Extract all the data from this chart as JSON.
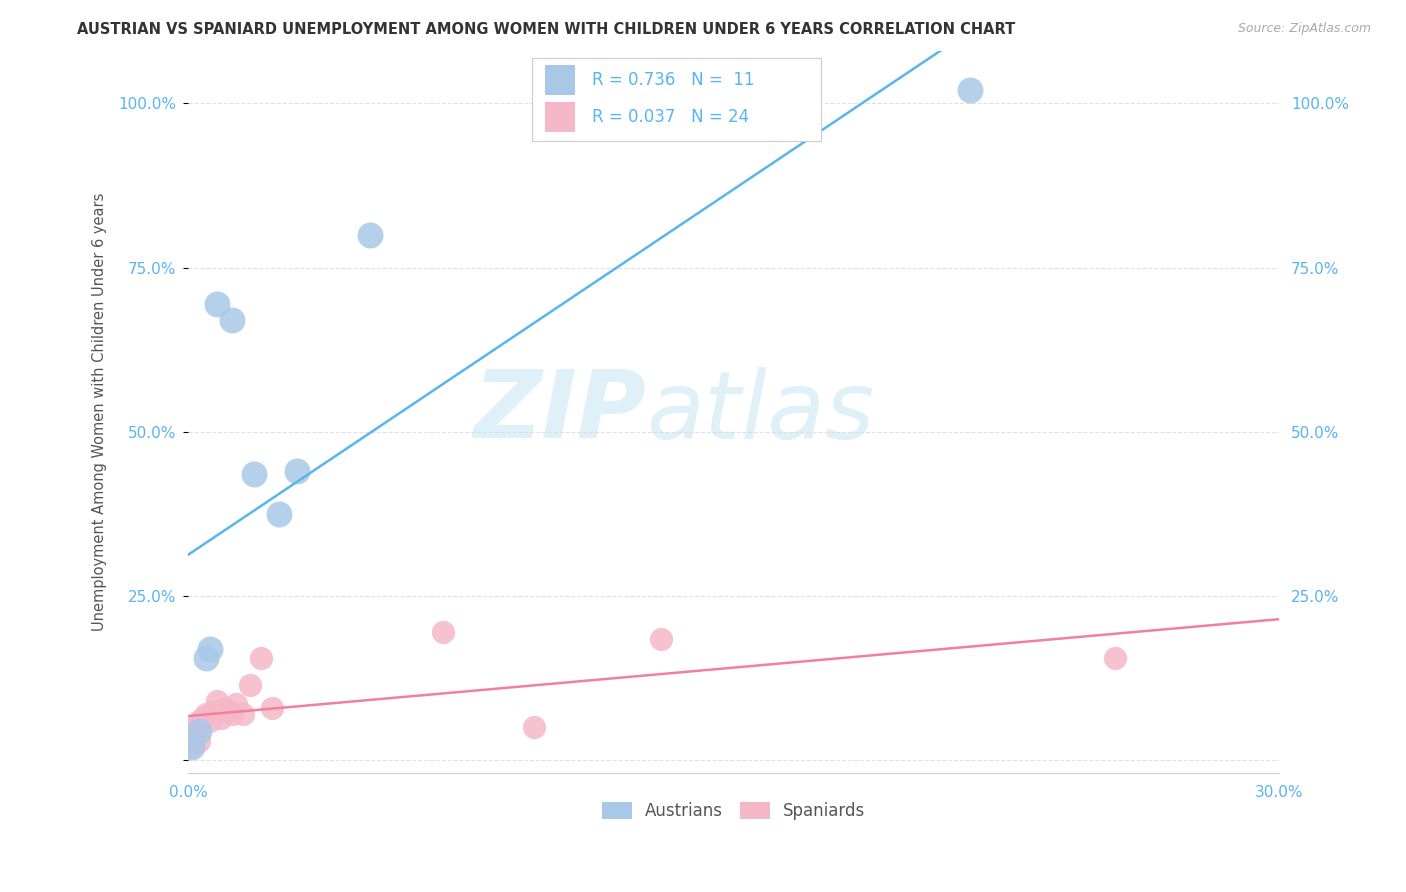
{
  "title": "AUSTRIAN VS SPANIARD UNEMPLOYMENT AMONG WOMEN WITH CHILDREN UNDER 6 YEARS CORRELATION CHART",
  "source": "Source: ZipAtlas.com",
  "ylabel": "Unemployment Among Women with Children Under 6 years",
  "xlim": [
    0.0,
    0.3
  ],
  "ylim": [
    -0.02,
    1.08
  ],
  "yticks": [
    0.0,
    0.25,
    0.5,
    0.75,
    1.0
  ],
  "ytick_labels": [
    "",
    "25.0%",
    "50.0%",
    "75.0%",
    "100.0%"
  ],
  "watermark_zip": "ZIP",
  "watermark_atlas": "atlas",
  "legend_r_austrians": "R = 0.736",
  "legend_n_austrians": "N =  11",
  "legend_r_spaniards": "R = 0.037",
  "legend_n_spaniards": "N = 24",
  "austrians_color": "#a8c8e8",
  "spaniards_color": "#f5b8c8",
  "line_austrians_color": "#5ab4f0",
  "line_spaniards_color": "#f080a0",
  "legend_text_color": "#5ab4f0",
  "title_color": "#333333",
  "source_color": "#aaaaaa",
  "ylabel_color": "#555555",
  "tick_color": "#5ab4f0",
  "grid_color": "#e0e0e0",
  "background_color": "#ffffff",
  "austrians_x": [
    0.001,
    0.003,
    0.005,
    0.006,
    0.008,
    0.012,
    0.018,
    0.025,
    0.03,
    0.05,
    0.215
  ],
  "austrians_y": [
    0.02,
    0.045,
    0.155,
    0.17,
    0.695,
    0.67,
    0.435,
    0.375,
    0.44,
    0.8,
    1.02
  ],
  "spaniards_x": [
    0.0005,
    0.001,
    0.0015,
    0.002,
    0.003,
    0.003,
    0.004,
    0.005,
    0.006,
    0.007,
    0.008,
    0.009,
    0.01,
    0.011,
    0.012,
    0.013,
    0.015,
    0.017,
    0.02,
    0.023,
    0.07,
    0.095,
    0.13,
    0.255
  ],
  "spaniards_y": [
    0.02,
    0.03,
    0.04,
    0.05,
    0.06,
    0.03,
    0.065,
    0.07,
    0.06,
    0.075,
    0.09,
    0.065,
    0.08,
    0.075,
    0.07,
    0.085,
    0.07,
    0.115,
    0.155,
    0.08,
    0.195,
    0.05,
    0.185,
    0.155
  ]
}
